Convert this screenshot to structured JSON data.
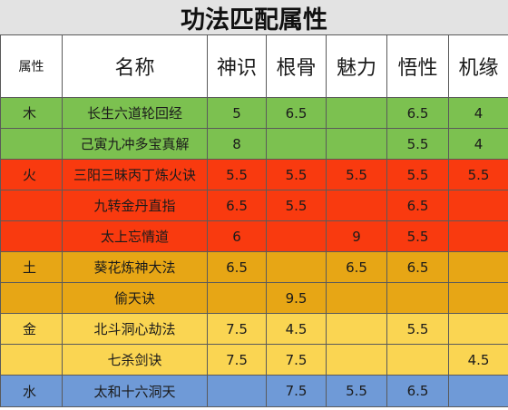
{
  "title": "功法匹配属性",
  "headers": [
    "属性",
    "名称",
    "神识",
    "根骨",
    "魅力",
    "悟性",
    "机缘"
  ],
  "colors": {
    "木": "#7cc150",
    "火": "#f93a0f",
    "土": "#e7a615",
    "金": "#fad552",
    "水": "#6f9ad7"
  },
  "rows": [
    {
      "attr": "木",
      "group": "木",
      "name": "长生六道轮回经",
      "v": [
        "5",
        "6.5",
        "",
        "6.5",
        "4"
      ]
    },
    {
      "attr": "",
      "group": "木",
      "name": "己寅九冲多宝真解",
      "v": [
        "8",
        "",
        "",
        "5.5",
        "4"
      ]
    },
    {
      "attr": "火",
      "group": "火",
      "name": "三阳三昧丙丁炼火诀",
      "v": [
        "5.5",
        "5.5",
        "5.5",
        "5.5",
        "5.5"
      ]
    },
    {
      "attr": "",
      "group": "火",
      "name": "九转金丹直指",
      "v": [
        "6.5",
        "5.5",
        "",
        "6.5",
        ""
      ]
    },
    {
      "attr": "",
      "group": "火",
      "name": "太上忘情道",
      "v": [
        "6",
        "",
        "9",
        "5.5",
        ""
      ]
    },
    {
      "attr": "土",
      "group": "土",
      "name": "葵花炼神大法",
      "v": [
        "6.5",
        "",
        "6.5",
        "6.5",
        ""
      ]
    },
    {
      "attr": "",
      "group": "土",
      "name": "偷天诀",
      "v": [
        "",
        "9.5",
        "",
        "",
        ""
      ]
    },
    {
      "attr": "金",
      "group": "金",
      "name": "北斗洞心劫法",
      "v": [
        "7.5",
        "4.5",
        "",
        "5.5",
        ""
      ]
    },
    {
      "attr": "",
      "group": "金",
      "name": "七杀剑诀",
      "v": [
        "7.5",
        "7.5",
        "",
        "",
        "4.5"
      ]
    },
    {
      "attr": "水",
      "group": "水",
      "name": "太和十六洞天",
      "v": [
        "",
        "7.5",
        "5.5",
        "6.5",
        ""
      ]
    }
  ]
}
